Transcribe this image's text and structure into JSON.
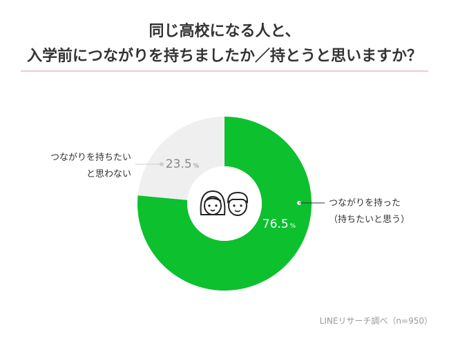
{
  "title_lines": [
    "同じ高校になる人と、",
    "入学前につながりを持ちましたか／持とうと思いますか？"
  ],
  "colors": {
    "accent_rule": "#f6c6d5",
    "yes": "#0cc02e",
    "no": "#efefef",
    "no_value_text": "#888888",
    "yes_value_text": "#ffffff",
    "label_text": "#333333"
  },
  "chart_data": {
    "type": "pie",
    "style": "donut",
    "title": "同じ高校になる人と、入学前につながりを持ちましたか／持とうと思いますか？",
    "slices": [
      {
        "key": "yes",
        "label_lines": [
          "つながりを持った",
          "（持ちたいと思う）"
        ],
        "value": 76.5,
        "value_text": "76.5",
        "unit": "%"
      },
      {
        "key": "no",
        "label_lines": [
          "つながりを持ちたい",
          "と思わない"
        ],
        "value": 23.5,
        "value_text": "23.5",
        "unit": "%"
      }
    ],
    "center_icons": [
      "girl-face-icon",
      "boy-face-icon"
    ]
  },
  "source": "LINEリサーチ調べ（n=950）"
}
